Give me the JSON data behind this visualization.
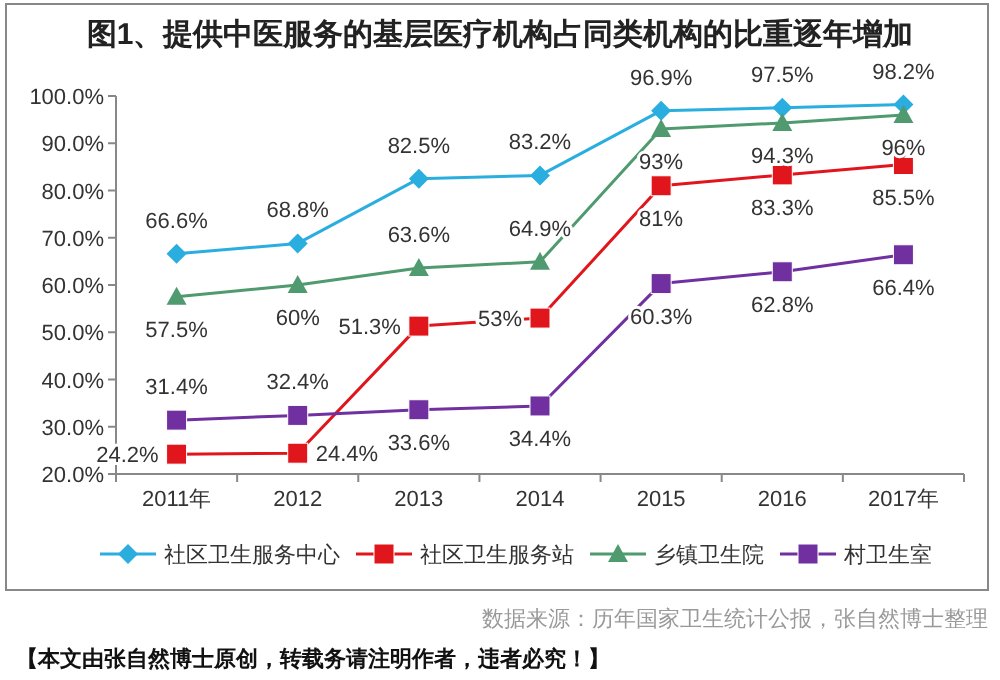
{
  "chart_data": {
    "type": "line",
    "title": "图1、提供中医服务的基层医疗机构占同类机构的比重逐年增加",
    "categories": [
      "2011年",
      "2012",
      "2013",
      "2014",
      "2015",
      "2016",
      "2017年"
    ],
    "ylim": [
      20,
      100
    ],
    "yticks": [
      {
        "value": 20,
        "label": "20.0%"
      },
      {
        "value": 30,
        "label": "30.0%"
      },
      {
        "value": 40,
        "label": "40.0%"
      },
      {
        "value": 50,
        "label": "50.0%"
      },
      {
        "value": 60,
        "label": "60.0%"
      },
      {
        "value": 70,
        "label": "70.0%"
      },
      {
        "value": 80,
        "label": "80.0%"
      },
      {
        "value": 90,
        "label": "90.0%"
      },
      {
        "value": 100,
        "label": "100.0%"
      }
    ],
    "series": [
      {
        "name": "社区卫生服务中心",
        "color": "#2aaee0",
        "marker": "diamond",
        "values": [
          66.6,
          68.8,
          82.5,
          83.2,
          96.9,
          97.5,
          98.2
        ],
        "value_labels": [
          "66.6%",
          "68.8%",
          "82.5%",
          "83.2%",
          "96.9%",
          "97.5%",
          "98.2%"
        ]
      },
      {
        "name": "社区卫生服务站",
        "color": "#e0161c",
        "marker": "square",
        "values": [
          24.2,
          24.4,
          51.3,
          53,
          81,
          83.3,
          85.5
        ],
        "value_labels": [
          "24.2%",
          "24.4%",
          "51.3%",
          "53%",
          "81%",
          "83.3%",
          "85.5%"
        ]
      },
      {
        "name": "乡镇卫生院",
        "color": "#4f9a6e",
        "marker": "triangle",
        "values": [
          57.5,
          60,
          63.6,
          64.9,
          93,
          94.3,
          96
        ],
        "value_labels": [
          "57.5%",
          "60%",
          "63.6%",
          "64.9%",
          "93%",
          "94.3%",
          "96%"
        ]
      },
      {
        "name": "村卫生室",
        "color": "#7030a0",
        "marker": "square",
        "values": [
          31.4,
          32.4,
          33.6,
          34.4,
          60.3,
          62.8,
          66.4
        ],
        "value_labels": [
          "31.4%",
          "32.4%",
          "33.6%",
          "34.4%",
          "60.3%",
          "62.8%",
          "66.4%"
        ]
      }
    ],
    "grid": false,
    "legend": "bottom",
    "line_style": "solid",
    "annotations": [
      "数据来源：历年国家卫生统计公报，张自然博士整理",
      "【本文由张自然博士原创，转载务请注明作者，违者必究！】"
    ]
  }
}
